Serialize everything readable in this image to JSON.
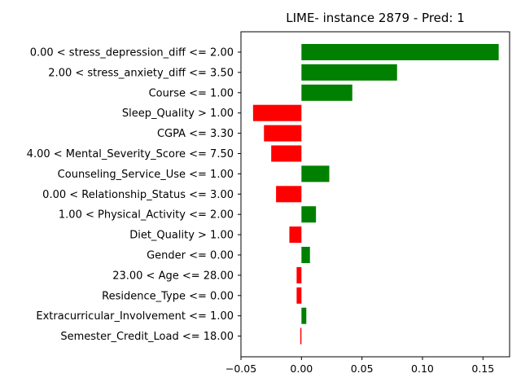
{
  "chart_data": {
    "type": "bar",
    "orientation": "horizontal",
    "title": "LIME- instance 2879 - Pred: 1",
    "xlabel": "",
    "ylabel": "",
    "xlim": [
      -0.05,
      0.172
    ],
    "xticks": [
      -0.05,
      0.0,
      0.05,
      0.1,
      0.15
    ],
    "xtick_labels": [
      "−0.05",
      "0.00",
      "0.05",
      "0.10",
      "0.15"
    ],
    "grid": false,
    "positive_color": "#008000",
    "negative_color": "#ff0000",
    "categories": [
      "0.00 < stress_depression_diff <= 2.00",
      "2.00 < stress_anxiety_diff <= 3.50",
      "Course <= 1.00",
      "Sleep_Quality > 1.00",
      "CGPA <= 3.30",
      "4.00 < Mental_Severity_Score <= 7.50",
      "Counseling_Service_Use <= 1.00",
      "0.00 < Relationship_Status <= 3.00",
      "1.00 < Physical_Activity <= 2.00",
      "Diet_Quality > 1.00",
      "Gender <= 0.00",
      "23.00 < Age <= 28.00",
      "Residence_Type <= 0.00",
      "Extracurricular_Involvement <= 1.00",
      "Semester_Credit_Load <= 18.00"
    ],
    "values": [
      0.163,
      0.079,
      0.042,
      -0.04,
      -0.031,
      -0.025,
      0.023,
      -0.021,
      0.012,
      -0.01,
      0.007,
      -0.004,
      -0.004,
      0.004,
      -0.001
    ]
  }
}
